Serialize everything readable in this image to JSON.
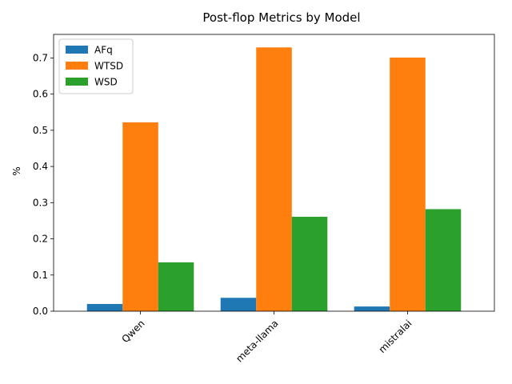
{
  "chart_data": {
    "type": "bar",
    "title": "Post-flop Metrics by Model",
    "xlabel": "",
    "ylabel": "%",
    "categories": [
      "Qwen",
      "meta-llama",
      "mistralai"
    ],
    "series": [
      {
        "name": "AFq",
        "values": [
          0.02,
          0.037,
          0.013
        ],
        "color": "#1f77b4"
      },
      {
        "name": "WTSD",
        "values": [
          0.522,
          0.729,
          0.701
        ],
        "color": "#ff7f0e"
      },
      {
        "name": "WSD",
        "values": [
          0.135,
          0.261,
          0.282
        ],
        "color": "#2ca02c"
      }
    ],
    "ylim": [
      0,
      0.765
    ],
    "yticks": [
      "0.0",
      "0.1",
      "0.2",
      "0.3",
      "0.4",
      "0.5",
      "0.6",
      "0.7"
    ],
    "grid": false,
    "legend_position": "top-left"
  }
}
